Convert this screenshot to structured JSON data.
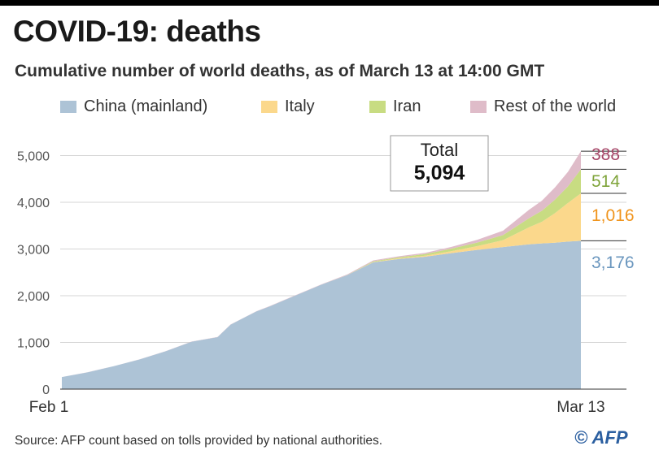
{
  "header": {
    "title": "COVID-19: deaths",
    "subtitle": "Cumulative number of world deaths, as of March 13 at 14:00 GMT"
  },
  "legend": [
    {
      "label": "China (mainland)",
      "color": "#adc3d6"
    },
    {
      "label": "Italy",
      "color": "#fbd88c"
    },
    {
      "label": "Iran",
      "color": "#c8dc82"
    },
    {
      "label": "Rest of the world",
      "color": "#dfbcc9"
    }
  ],
  "total_box": {
    "label": "Total",
    "value": "5,094"
  },
  "end_labels": {
    "china": "3,176",
    "italy": "1,016",
    "iran": "514",
    "rest": "388",
    "colors": {
      "china": "#6a96be",
      "italy": "#f0941c",
      "iran": "#7fa43a",
      "rest": "#a54466"
    }
  },
  "chart_data": {
    "type": "area",
    "stacked": true,
    "title": "COVID-19: deaths",
    "subtitle": "Cumulative number of world deaths, as of March 13 at 14:00 GMT",
    "xlabel": "",
    "ylabel": "",
    "x_tick_labels": [
      "Feb 1",
      "Mar 13"
    ],
    "y_ticks": [
      0,
      1000,
      2000,
      3000,
      4000,
      5000
    ],
    "y_tick_labels": [
      "0",
      "1,000",
      "2,000",
      "3,000",
      "4,000",
      "5,000"
    ],
    "ylim": [
      0,
      5300
    ],
    "grid": true,
    "legend_position": "top",
    "x_day_offset": [
      0,
      2,
      4,
      6,
      8,
      10,
      12,
      13,
      14,
      15,
      16,
      18,
      20,
      22,
      24,
      26,
      28,
      30,
      32,
      34,
      36,
      37,
      38,
      39,
      40
    ],
    "series": [
      {
        "name": "China (mainland)",
        "values": [
          259,
          361,
          490,
          636,
          811,
          1016,
          1113,
          1380,
          1523,
          1665,
          1770,
          2004,
          2236,
          2442,
          2715,
          2788,
          2835,
          2912,
          2981,
          3042,
          3099,
          3120,
          3136,
          3158,
          3176
        ]
      },
      {
        "name": "Italy",
        "values": [
          0,
          0,
          0,
          0,
          0,
          0,
          0,
          0,
          0,
          0,
          0,
          0,
          0,
          0,
          7,
          14,
          21,
          41,
          79,
          148,
          366,
          463,
          631,
          827,
          1016
        ]
      },
      {
        "name": "Iran",
        "values": [
          0,
          0,
          0,
          0,
          0,
          0,
          0,
          0,
          0,
          0,
          0,
          0,
          0,
          2,
          16,
          22,
          34,
          54,
          77,
          107,
          194,
          237,
          291,
          354,
          514
        ]
      },
      {
        "name": "Rest of the world",
        "values": [
          1,
          2,
          2,
          2,
          3,
          3,
          3,
          4,
          4,
          5,
          5,
          6,
          8,
          12,
          18,
          22,
          28,
          36,
          60,
          95,
          180,
          215,
          258,
          312,
          388
        ]
      }
    ],
    "total": 5094
  },
  "source": "Source:  AFP count based on tolls provided by national authorities.",
  "credit": "© AFP"
}
